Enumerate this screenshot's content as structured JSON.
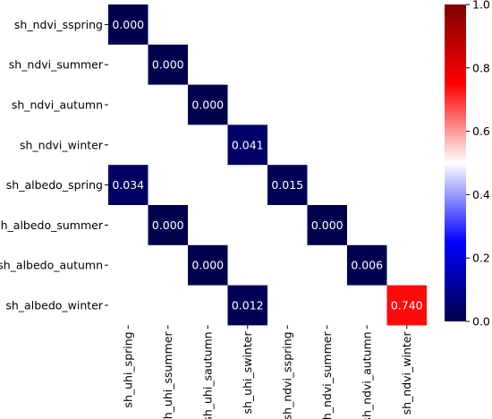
{
  "chart_data": {
    "type": "heatmap",
    "x_labels": [
      "sh_uhi_spring",
      "sh_uhi_ssummer",
      "sh_uhi_sautumn",
      "sh_uhi_swinter",
      "sh_ndvi_sspring",
      "sh_ndvi_summer",
      "sh_ndvi_autumn",
      "sh_ndvi_winter"
    ],
    "y_labels": [
      "sh_ndvi_sspring",
      "sh_ndvi_summer",
      "sh_ndvi_autumn",
      "sh_ndvi_winter",
      "sh_albedo_spring",
      "sh_albedo_summer",
      "sh_albedo_autumn",
      "sh_albedo_winter"
    ],
    "cells": [
      {
        "row": 0,
        "col": 0,
        "value": 0.0,
        "label": "0.000"
      },
      {
        "row": 1,
        "col": 1,
        "value": 0.0,
        "label": "0.000"
      },
      {
        "row": 2,
        "col": 2,
        "value": 0.0,
        "label": "0.000"
      },
      {
        "row": 3,
        "col": 3,
        "value": 0.041,
        "label": "0.041"
      },
      {
        "row": 4,
        "col": 0,
        "value": 0.034,
        "label": "0.034"
      },
      {
        "row": 4,
        "col": 4,
        "value": 0.015,
        "label": "0.015"
      },
      {
        "row": 5,
        "col": 1,
        "value": 0.0,
        "label": "0.000"
      },
      {
        "row": 5,
        "col": 5,
        "value": 0.0,
        "label": "0.000"
      },
      {
        "row": 6,
        "col": 2,
        "value": 0.0,
        "label": "0.000"
      },
      {
        "row": 6,
        "col": 6,
        "value": 0.006,
        "label": "0.006"
      },
      {
        "row": 7,
        "col": 3,
        "value": 0.012,
        "label": "0.012"
      },
      {
        "row": 7,
        "col": 7,
        "value": 0.74,
        "label": "0.740"
      }
    ],
    "colorbar": {
      "min": 0.0,
      "max": 1.0,
      "ticks": [
        "0.0",
        "0.2",
        "0.4",
        "0.6",
        "0.8",
        "1.0"
      ],
      "colormap": "seismic",
      "colors": [
        "#00004c",
        "#0000ff",
        "#ffffff",
        "#ff0000",
        "#7f0000"
      ]
    },
    "grid": false,
    "title": "",
    "xlabel": "",
    "ylabel": ""
  }
}
